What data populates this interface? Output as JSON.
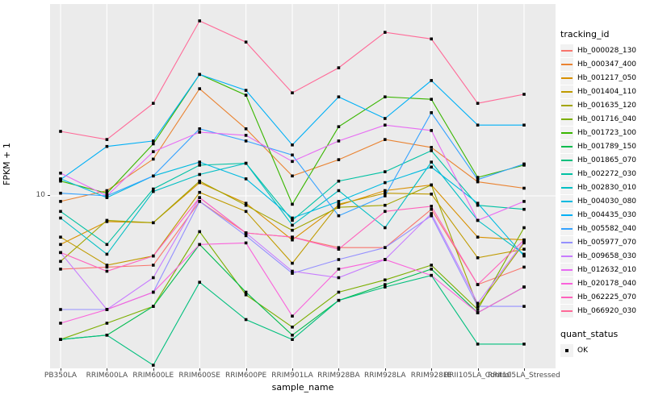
{
  "chart_data": {
    "type": "line",
    "title": "",
    "xlabel": "sample_name",
    "ylabel": "FPKM + 1",
    "y_scale": "log10",
    "ylim": [
      1.45,
      85.8
    ],
    "y_tick_label": "10",
    "y_ticks": [
      10
    ],
    "grid": "ggplot-gray-panel-white-gridlines",
    "legend_position": "right",
    "legend_title": "tracking_id",
    "point_shape": "filled-square-black",
    "categories": [
      "PB350LA",
      "RRIM600LA",
      "RRIM600LE",
      "RRIM600SE",
      "RRIM600PE",
      "RRIM901LA",
      "RRIM928BA",
      "RRIM928LA",
      "RRIM928LE",
      "RRII105LA_Control",
      "RRII105LA_Stressed"
    ],
    "series": [
      {
        "name": "Hb_000028_130",
        "color": "#F8766D",
        "values": [
          4.4,
          4.5,
          4.6,
          9.4,
          6.6,
          6.3,
          5.6,
          5.6,
          8.6,
          3.7,
          4.5
        ]
      },
      {
        "name": "Hb_000347_400",
        "color": "#EA8331",
        "values": [
          9.4,
          10.6,
          15.1,
          33.2,
          21.2,
          12.5,
          15.0,
          18.8,
          17.2,
          11.7,
          10.9
        ]
      },
      {
        "name": "Hb_001217_050",
        "color": "#D89000",
        "values": [
          5.8,
          7.5,
          7.4,
          11.6,
          9.2,
          6.1,
          9.0,
          10.6,
          11.3,
          6.3,
          6.1
        ]
      },
      {
        "name": "Hb_001404_110",
        "color": "#C09B00",
        "values": [
          6.3,
          4.6,
          5.1,
          10.4,
          8.4,
          4.7,
          9.1,
          10.3,
          10.2,
          5.0,
          5.5
        ]
      },
      {
        "name": "Hb_001635_120",
        "color": "#A3A500",
        "values": [
          4.8,
          7.6,
          7.4,
          11.8,
          9.0,
          6.8,
          8.8,
          9.0,
          11.3,
          2.9,
          5.9
        ]
      },
      {
        "name": "Hb_001716_040",
        "color": "#7CAE00",
        "values": [
          2.0,
          2.4,
          2.9,
          6.7,
          3.3,
          2.3,
          3.4,
          3.9,
          4.6,
          2.8,
          7.0
        ]
      },
      {
        "name": "Hb_001723_100",
        "color": "#39B600",
        "values": [
          11.8,
          10.3,
          17.9,
          39.0,
          30.9,
          9.1,
          21.7,
          30.3,
          29.5,
          12.3,
          14.1
        ]
      },
      {
        "name": "Hb_001789_150",
        "color": "#00BB4E",
        "values": [
          2.0,
          2.1,
          2.9,
          5.8,
          3.4,
          2.1,
          3.1,
          3.7,
          4.4,
          2.7,
          3.6
        ]
      },
      {
        "name": "Hb_001865_070",
        "color": "#00BF7D",
        "values": [
          2.0,
          2.1,
          1.5,
          3.8,
          2.5,
          2.0,
          3.1,
          3.6,
          4.1,
          1.9,
          1.9
        ]
      },
      {
        "name": "Hb_002272_030",
        "color": "#00C1A3",
        "values": [
          8.4,
          5.8,
          10.8,
          14.1,
          14.4,
          7.6,
          11.8,
          13.1,
          16.6,
          9.0,
          8.6
        ]
      },
      {
        "name": "Hb_002830_010",
        "color": "#00BFC4",
        "values": [
          7.8,
          5.2,
          10.5,
          12.7,
          14.4,
          7.2,
          10.6,
          7.0,
          14.6,
          7.6,
          5.2
        ]
      },
      {
        "name": "Hb_004030_080",
        "color": "#00BAE0",
        "values": [
          12.1,
          9.8,
          12.5,
          14.6,
          12.1,
          7.8,
          9.4,
          11.6,
          13.8,
          9.2,
          5.1
        ]
      },
      {
        "name": "Hb_004435_030",
        "color": "#00B0F6",
        "values": [
          12.0,
          17.4,
          18.5,
          39.0,
          32.6,
          17.7,
          30.3,
          23.8,
          36.4,
          22.1,
          22.1
        ]
      },
      {
        "name": "Hb_005582_040",
        "color": "#35A2FF",
        "values": [
          10.3,
          10.0,
          12.5,
          21.2,
          18.5,
          15.8,
          8.0,
          10.0,
          25.4,
          12.0,
          14.3
        ]
      },
      {
        "name": "Hb_005977_070",
        "color": "#9590FF",
        "values": [
          2.8,
          2.8,
          3.4,
          9.4,
          6.4,
          4.2,
          4.9,
          5.6,
          8.0,
          2.9,
          2.9
        ]
      },
      {
        "name": "Hb_009658_030",
        "color": "#C77CFF",
        "values": [
          5.3,
          2.8,
          4.0,
          9.8,
          6.6,
          4.3,
          4.0,
          4.9,
          8.2,
          3.0,
          6.0
        ]
      },
      {
        "name": "Hb_012632_010",
        "color": "#E76BF3",
        "values": [
          12.9,
          10.0,
          16.4,
          20.4,
          19.7,
          14.7,
          18.5,
          22.1,
          20.8,
          7.6,
          9.4
        ]
      },
      {
        "name": "Hb_020178_040",
        "color": "#FA62DB",
        "values": [
          2.4,
          2.8,
          3.4,
          5.8,
          5.9,
          2.6,
          4.4,
          4.9,
          4.1,
          2.7,
          3.6
        ]
      },
      {
        "name": "Hb_062225_070",
        "color": "#FF62BC",
        "values": [
          5.3,
          4.3,
          5.1,
          9.8,
          6.6,
          6.3,
          5.5,
          8.4,
          8.9,
          3.7,
          6.1
        ]
      },
      {
        "name": "Hb_066920_030",
        "color": "#FF6A98",
        "values": [
          20.6,
          18.8,
          28.2,
          71.0,
          56.0,
          31.7,
          42.0,
          62.5,
          58.0,
          28.2,
          31.2
        ]
      }
    ],
    "quant_status": {
      "title": "quant_status",
      "items": [
        "OK"
      ]
    }
  }
}
